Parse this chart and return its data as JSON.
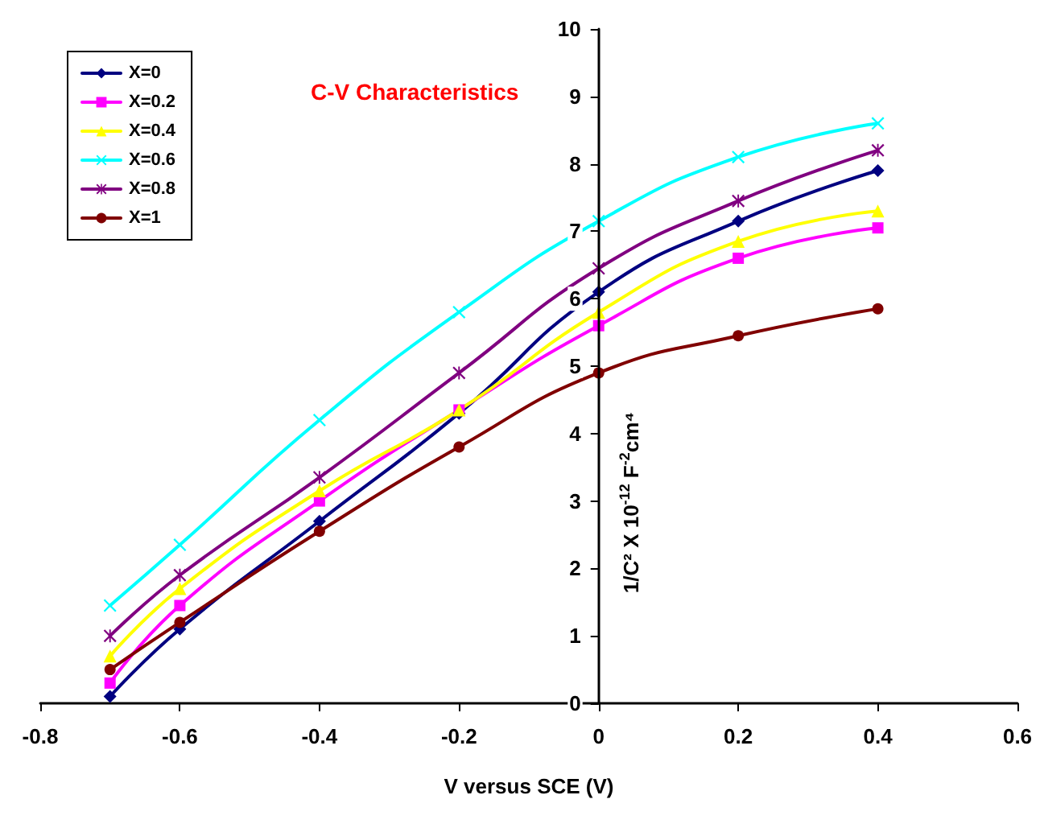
{
  "chart_data": {
    "type": "line",
    "title": "C-V Characteristics",
    "xlabel": "V versus SCE (V)",
    "ylabel": "1/C² X 10$^{-12}$ F$^{-2}$cm⁴",
    "x": [
      -0.7,
      -0.6,
      -0.4,
      -0.2,
      0,
      0.2,
      0.4
    ],
    "series": [
      {
        "name": "X=0",
        "color": "#000080",
        "marker": "diamond",
        "values": [
          0.1,
          1.1,
          2.7,
          4.3,
          6.1,
          7.15,
          7.9
        ]
      },
      {
        "name": "X=0.2",
        "color": "#ff00ff",
        "marker": "square",
        "values": [
          0.3,
          1.45,
          3.0,
          4.35,
          5.6,
          6.6,
          7.05
        ]
      },
      {
        "name": "X=0.4",
        "color": "#ffff00",
        "marker": "triangle",
        "values": [
          0.7,
          1.7,
          3.15,
          4.35,
          5.8,
          6.85,
          7.3
        ]
      },
      {
        "name": "X=0.6",
        "color": "#00ffff",
        "marker": "cross",
        "values": [
          1.45,
          2.35,
          4.2,
          5.8,
          7.15,
          8.1,
          8.6
        ]
      },
      {
        "name": "X=0.8",
        "color": "#800080",
        "marker": "star",
        "values": [
          1.0,
          1.9,
          3.35,
          4.9,
          6.45,
          7.45,
          8.2
        ]
      },
      {
        "name": "X=1",
        "color": "#800000",
        "marker": "circle",
        "values": [
          0.5,
          1.2,
          2.55,
          3.8,
          4.9,
          5.45,
          5.85
        ]
      }
    ],
    "xlim": [
      -0.8,
      0.6
    ],
    "xticks": [
      -0.8,
      -0.6,
      -0.4,
      -0.2,
      0,
      0.2,
      0.4,
      0.6
    ],
    "ylim": [
      0,
      10
    ],
    "yticks": [
      0,
      1,
      2,
      3,
      4,
      5,
      6,
      7,
      8,
      9,
      10
    ],
    "grid": false,
    "legend": "top left",
    "line_style": "solid"
  }
}
